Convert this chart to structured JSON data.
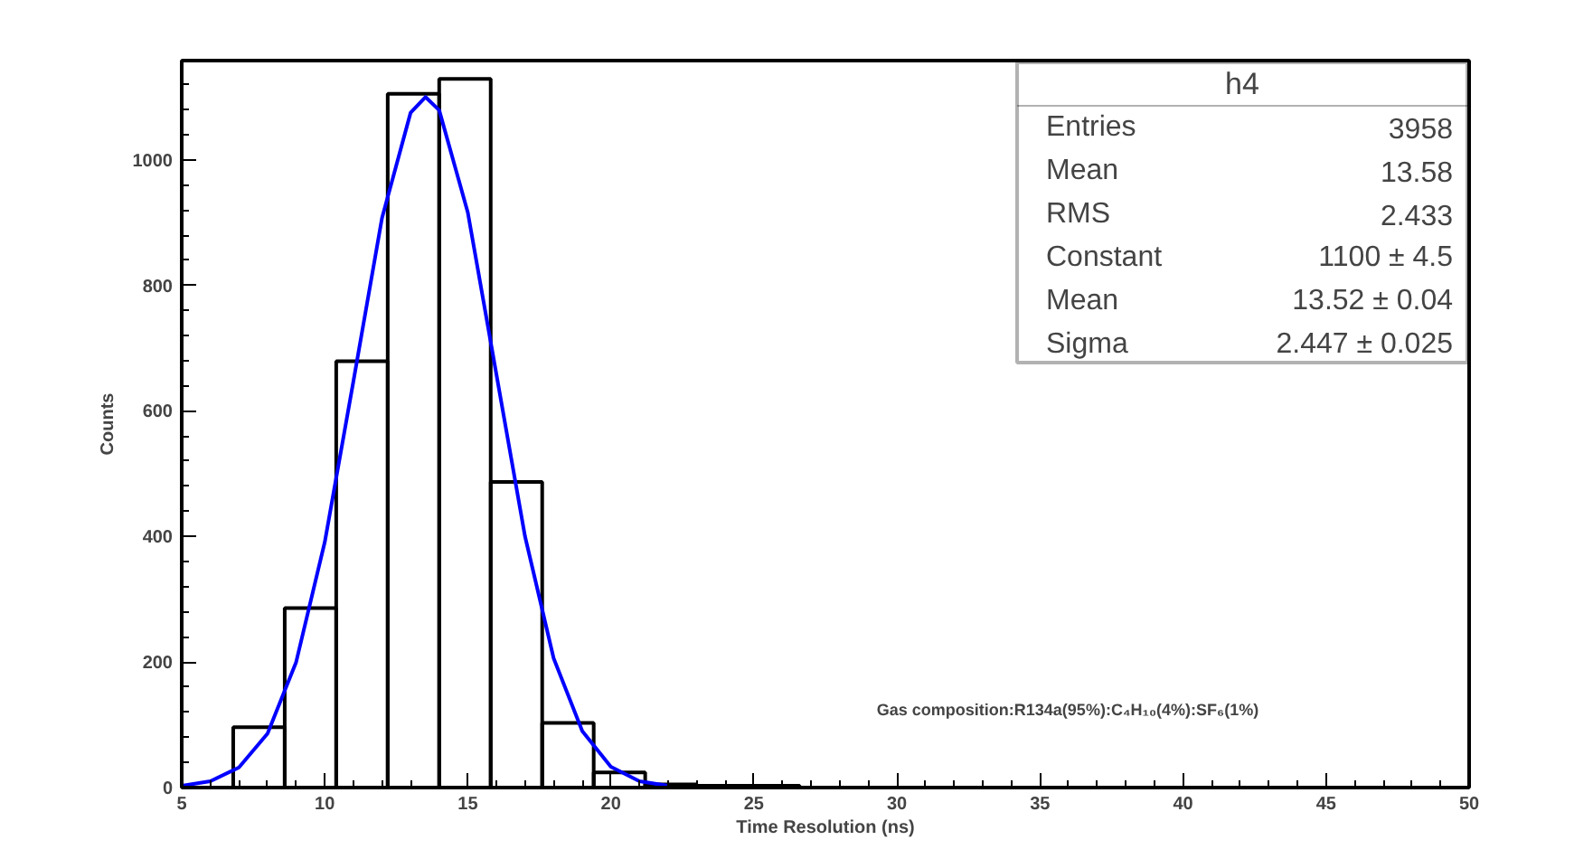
{
  "chart_data": {
    "type": "histogram",
    "xlabel": "Time Resolution (ns)",
    "ylabel": "Counts",
    "bins": [
      5,
      6.8,
      8.6,
      10.4,
      12.2,
      14,
      15.8,
      17.6,
      19.4,
      21.2,
      23,
      24.8,
      26.6,
      28.4,
      30.2,
      32,
      33.8,
      35.6,
      37.4,
      39.2,
      41,
      42.8,
      44.6,
      46.4,
      48.2,
      50
    ],
    "values": [
      0,
      96,
      286,
      679,
      1105,
      1129,
      487,
      103,
      24,
      5,
      3,
      3,
      0,
      0,
      0,
      0,
      0,
      0,
      0,
      0,
      0,
      0,
      0,
      0,
      0
    ],
    "color": "#000000",
    "series": [
      {
        "type": "line",
        "color": "#0000ff",
        "x": [
          5,
          6,
          7,
          8,
          9,
          10,
          11,
          12,
          13,
          13.52,
          14,
          15,
          16,
          17,
          18,
          19,
          20,
          21,
          22
        ],
        "values": [
          3,
          10,
          32,
          86,
          200,
          391,
          647,
          907,
          1075,
          1100,
          1079,
          916,
          658,
          400,
          206,
          90,
          33,
          10,
          3
        ]
      }
    ],
    "xlim": [
      5,
      50
    ],
    "xticks": [
      5,
      10,
      15,
      20,
      25,
      30,
      35,
      40,
      45,
      50
    ],
    "ylim": [
      0,
      1158
    ],
    "yticks": [
      0,
      200,
      400,
      600,
      800,
      1000
    ],
    "grid": false,
    "annotations": [
      "h4",
      "Entries",
      "3958",
      "Mean",
      "13.58",
      "RMS",
      "2.433",
      "Constant",
      "1100 ± 4.5",
      "Mean",
      "13.52 ± 0.04",
      "Sigma",
      "2.447 ± 0.025",
      "Gas composition:R134a(95%):C₄H₁₀(4%):SF₆(1%)"
    ]
  }
}
